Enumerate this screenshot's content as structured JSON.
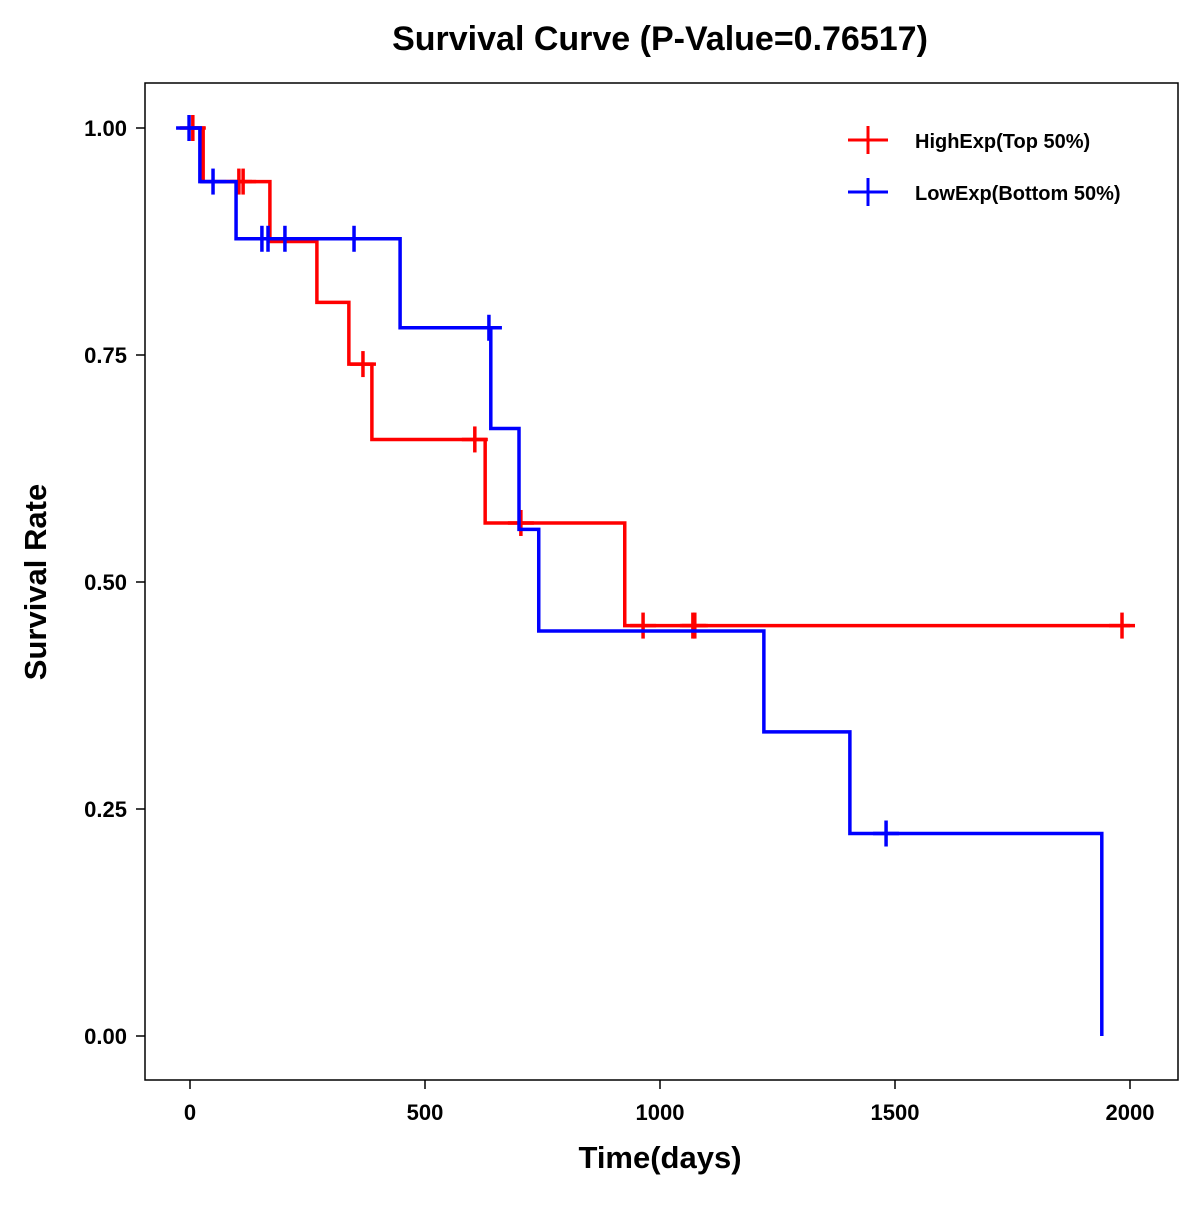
{
  "chart_data": {
    "type": "line",
    "subtype": "kaplan-meier step",
    "title": "Survival Curve (P-Value=0.76517)",
    "xlabel": "Time(days)",
    "ylabel": "Survival Rate",
    "xlim": [
      -90,
      2090
    ],
    "ylim": [
      -0.05,
      1.05
    ],
    "xticks": [
      0,
      500,
      1000,
      1500,
      2000
    ],
    "xtick_labels": [
      "0",
      "500",
      "1000",
      "1500",
      "2000"
    ],
    "yticks": [
      0,
      0.25,
      0.5,
      0.75,
      1.0
    ],
    "ytick_labels": [
      "0.00",
      "0.25",
      "0.50",
      "0.75",
      "1.00"
    ],
    "grid": false,
    "legend_position": "top-right",
    "series": [
      {
        "name": "HighExp(Top 50%)",
        "color": "#FF0000",
        "steps": [
          [
            0,
            1.0
          ],
          [
            28,
            0.941
          ],
          [
            170,
            0.875
          ],
          [
            270,
            0.808
          ],
          [
            338,
            0.74
          ],
          [
            387,
            0.657
          ],
          [
            628,
            0.565
          ],
          [
            925,
            0.452
          ],
          [
            2000,
            0.452
          ]
        ],
        "censored": [
          [
            6,
            1.0
          ],
          [
            104,
            0.941
          ],
          [
            113,
            0.941
          ],
          [
            368,
            0.74
          ],
          [
            606,
            0.657
          ],
          [
            704,
            0.565
          ],
          [
            964,
            0.452
          ],
          [
            1070,
            0.452
          ],
          [
            1074,
            0.452
          ],
          [
            1983,
            0.452
          ]
        ]
      },
      {
        "name": "LowExp(Bottom 50%)",
        "color": "#0000FF",
        "steps": [
          [
            -5,
            1.0
          ],
          [
            21,
            0.941
          ],
          [
            98,
            0.878
          ],
          [
            447,
            0.78
          ],
          [
            640,
            0.669
          ],
          [
            700,
            0.558
          ],
          [
            742,
            0.446
          ],
          [
            1221,
            0.335
          ],
          [
            1404,
            0.223
          ],
          [
            1940,
            0.0
          ]
        ],
        "censored": [
          [
            -2,
            1.0
          ],
          [
            49,
            0.941
          ],
          [
            153,
            0.878
          ],
          [
            166,
            0.878
          ],
          [
            202,
            0.878
          ],
          [
            349,
            0.878
          ],
          [
            636,
            0.78
          ],
          [
            1481,
            0.223
          ]
        ]
      }
    ]
  }
}
